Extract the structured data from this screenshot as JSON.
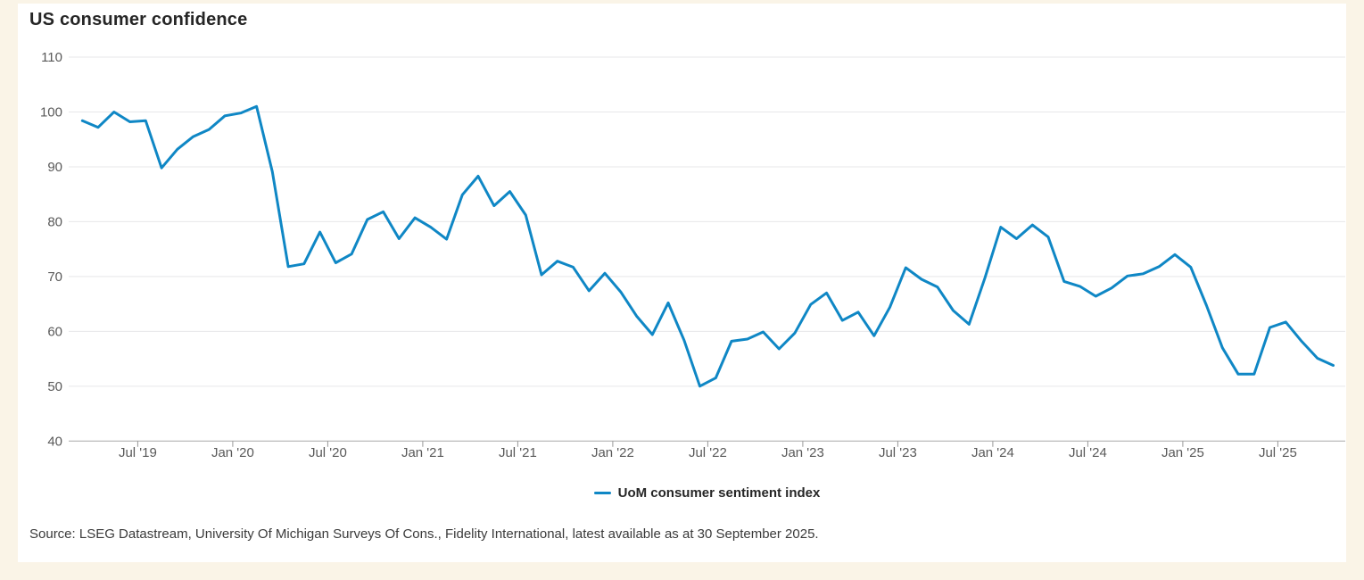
{
  "page": {
    "title": "US consumer confidence",
    "source_note": "Source: LSEG Datastream, University Of Michigan Surveys Of Cons., Fidelity International, latest available as at 30 September 2025."
  },
  "legend": {
    "label": "UoM consumer sentiment index",
    "color": "#0f87c5"
  },
  "colors": {
    "page_background": "#faf4e7",
    "panel_background": "#ffffff",
    "series_line": "#0f87c5",
    "gridline": "#e7e7e9",
    "axis_line": "#a9a9a9",
    "tick_mark": "#999999",
    "axis_label": "#595959",
    "title_text": "#262626",
    "source_text": "#3a3a3a"
  },
  "chart_data": {
    "type": "line",
    "title": "US consumer confidence",
    "xlabel": "",
    "ylabel": "",
    "ylim": [
      40,
      110
    ],
    "y_ticks": [
      40,
      50,
      60,
      70,
      80,
      90,
      100,
      110
    ],
    "grid": "horizontal",
    "legend_position": "bottom-center",
    "x": [
      "Mar 2019",
      "Apr 2019",
      "May 2019",
      "Jun 2019",
      "Jul 2019",
      "Aug 2019",
      "Sep 2019",
      "Oct 2019",
      "Nov 2019",
      "Dec 2019",
      "Jan 2020",
      "Feb 2020",
      "Mar 2020",
      "Apr 2020",
      "May 2020",
      "Jun 2020",
      "Jul 2020",
      "Aug 2020",
      "Sep 2020",
      "Oct 2020",
      "Nov 2020",
      "Dec 2020",
      "Jan 2021",
      "Feb 2021",
      "Mar 2021",
      "Apr 2021",
      "May 2021",
      "Jun 2021",
      "Jul 2021",
      "Aug 2021",
      "Sep 2021",
      "Oct 2021",
      "Nov 2021",
      "Dec 2021",
      "Jan 2022",
      "Feb 2022",
      "Mar 2022",
      "Apr 2022",
      "May 2022",
      "Jun 2022",
      "Jul 2022",
      "Aug 2022",
      "Sep 2022",
      "Oct 2022",
      "Nov 2022",
      "Dec 2022",
      "Jan 2023",
      "Feb 2023",
      "Mar 2023",
      "Apr 2023",
      "May 2023",
      "Jun 2023",
      "Jul 2023",
      "Aug 2023",
      "Sep 2023",
      "Oct 2023",
      "Nov 2023",
      "Dec 2023",
      "Jan 2024",
      "Feb 2024",
      "Mar 2024",
      "Apr 2024",
      "May 2024",
      "Jun 2024",
      "Jul 2024",
      "Aug 2024",
      "Sep 2024",
      "Oct 2024",
      "Nov 2024",
      "Dec 2024",
      "Jan 2025",
      "Feb 2025",
      "Mar 2025",
      "Apr 2025",
      "May 2025",
      "Jun 2025",
      "Jul 2025",
      "Aug 2025",
      "Sep 2025",
      "Oct 2025"
    ],
    "series": [
      {
        "name": "UoM consumer sentiment index",
        "color": "#0f87c5",
        "values": [
          98.4,
          97.2,
          100.0,
          98.2,
          98.4,
          89.8,
          93.2,
          95.5,
          96.8,
          99.3,
          99.8,
          101.0,
          89.1,
          71.8,
          72.3,
          78.1,
          72.5,
          74.1,
          80.4,
          81.8,
          76.9,
          80.7,
          79.0,
          76.8,
          84.9,
          88.3,
          82.9,
          85.5,
          81.2,
          70.3,
          72.8,
          71.7,
          67.4,
          70.6,
          67.2,
          62.8,
          59.4,
          65.2,
          58.4,
          50.0,
          51.5,
          58.2,
          58.6,
          59.9,
          56.8,
          59.7,
          64.9,
          67.0,
          62.0,
          63.5,
          59.2,
          64.4,
          71.6,
          69.5,
          68.1,
          63.8,
          61.3,
          69.7,
          79.0,
          76.9,
          79.4,
          77.2,
          69.1,
          68.2,
          66.4,
          67.9,
          70.1,
          70.5,
          71.8,
          74.0,
          71.7,
          64.7,
          57.0,
          52.2,
          52.2,
          60.7,
          61.7,
          58.2,
          55.1,
          53.8
        ]
      }
    ],
    "x_tick_labels": [
      "Jul '19",
      "Jan '20",
      "Jul '20",
      "Jan '21",
      "Jul '21",
      "Jan '22",
      "Jul '22",
      "Jan '23",
      "Jul '23",
      "Jan '24",
      "Jul '24",
      "Jan '25",
      "Jul '25"
    ],
    "x_tick_indices": [
      4,
      10,
      16,
      22,
      28,
      34,
      40,
      46,
      52,
      58,
      64,
      70,
      76
    ]
  }
}
